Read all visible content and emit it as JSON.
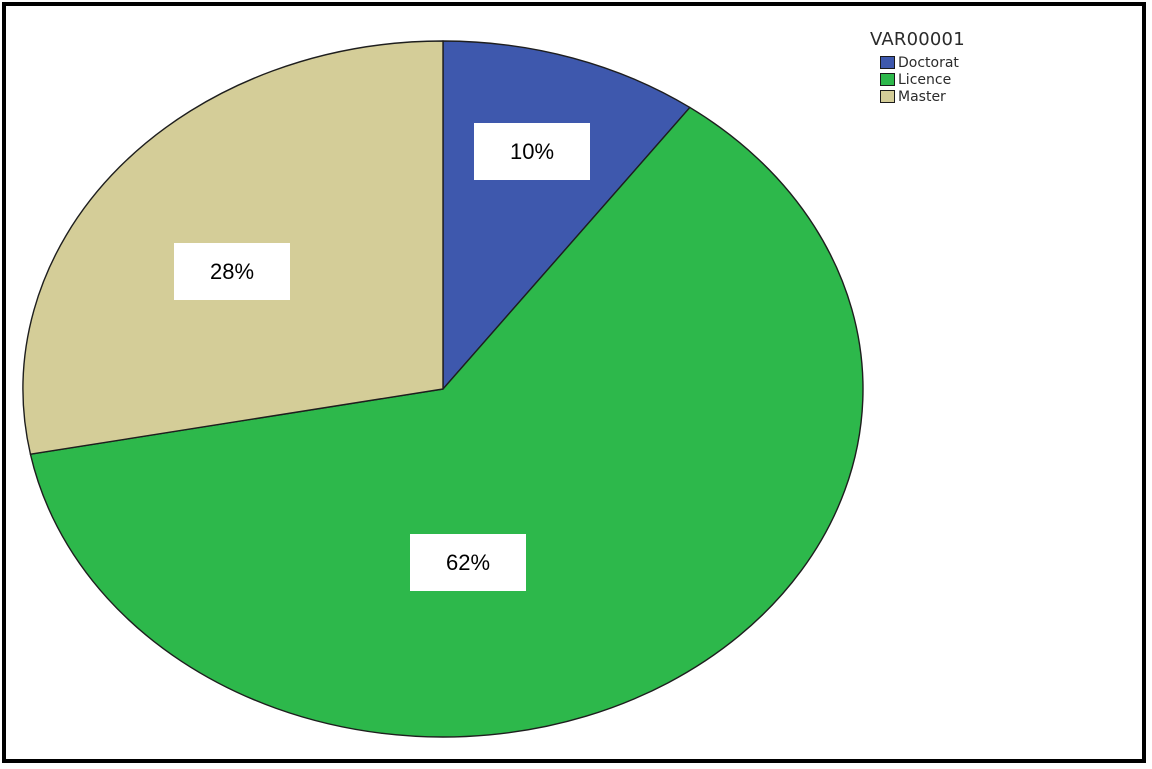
{
  "chart_data": {
    "type": "pie",
    "legend_title": "VAR00001",
    "legend_position": "top-right",
    "slices": [
      {
        "name": "Doctorat",
        "value": 10,
        "label": "10%",
        "color": "#3e58ad"
      },
      {
        "name": "Licence",
        "value": 62,
        "label": "62%",
        "color": "#2db84b"
      },
      {
        "name": "Master",
        "value": 28,
        "label": "28%",
        "color": "#d4cd98"
      }
    ]
  }
}
